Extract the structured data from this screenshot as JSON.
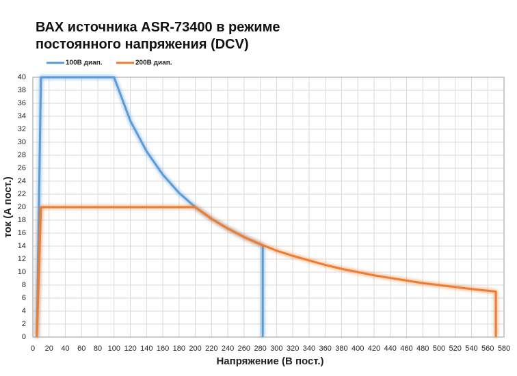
{
  "chart_data": {
    "type": "line",
    "title": "ВАХ источника ASR-73400 в режиме постоянного напряжения (DCV)",
    "x_label": "Напряжение (В пост.)",
    "y_label": "ток (А пост.)",
    "xlim": [
      0,
      580
    ],
    "ylim": [
      0,
      40
    ],
    "xticks": [
      0,
      20,
      40,
      60,
      80,
      100,
      120,
      140,
      160,
      180,
      200,
      220,
      240,
      260,
      280,
      300,
      320,
      340,
      360,
      380,
      400,
      420,
      440,
      460,
      480,
      500,
      520,
      540,
      560,
      580
    ],
    "yticks": [
      0,
      2,
      4,
      6,
      8,
      10,
      12,
      14,
      16,
      18,
      20,
      22,
      24,
      26,
      28,
      30,
      32,
      34,
      36,
      38,
      40
    ],
    "grid": true,
    "legend": "top-left",
    "series": [
      {
        "name": "100В диап.",
        "color": "#5b9bd5",
        "x": [
          5,
          10,
          100,
          120,
          140,
          160,
          180,
          200,
          220,
          240,
          260,
          283,
          283
        ],
        "values": [
          0,
          40,
          40,
          33.3,
          28.6,
          25,
          22.2,
          20,
          18.2,
          16.7,
          15.4,
          14.1,
          0
        ]
      },
      {
        "name": "200В диап.",
        "color": "#ed7d31",
        "x": [
          5,
          10,
          200,
          220,
          240,
          260,
          280,
          300,
          320,
          340,
          360,
          380,
          400,
          420,
          440,
          460,
          480,
          500,
          520,
          540,
          570,
          570
        ],
        "values": [
          0,
          20,
          20,
          18.2,
          16.7,
          15.4,
          14.3,
          13.3,
          12.5,
          11.8,
          11.1,
          10.5,
          10,
          9.5,
          9.1,
          8.7,
          8.3,
          8,
          7.7,
          7.4,
          7,
          0
        ]
      }
    ]
  }
}
